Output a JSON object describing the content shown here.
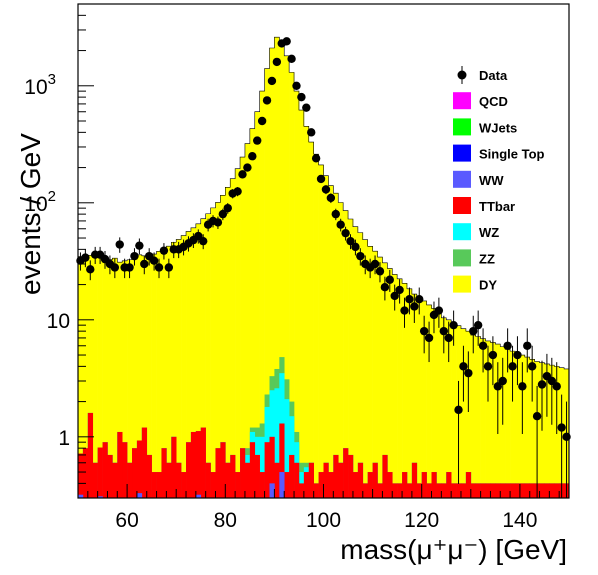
{
  "chart_data": {
    "type": "histogram",
    "stacked": true,
    "xlabel": "mass(μ⁺μ⁻) [GeV]",
    "ylabel": "events / GeV",
    "xlim": [
      50,
      150
    ],
    "ylim": [
      0.3,
      5000
    ],
    "y_scale": "log",
    "bin_width": 1,
    "grid": false,
    "legend_position": "top-right",
    "x_ticks": [
      {
        "value": 60,
        "label": "60"
      },
      {
        "value": 80,
        "label": "80"
      },
      {
        "value": 100,
        "label": "100"
      },
      {
        "value": 120,
        "label": "120"
      },
      {
        "value": 140,
        "label": "140"
      }
    ],
    "y_ticks": [
      {
        "value": 1,
        "label": "1",
        "sup": ""
      },
      {
        "value": 10,
        "label": "10",
        "sup": ""
      },
      {
        "value": 100,
        "label": "10",
        "sup": "2"
      },
      {
        "value": 1000,
        "label": "10",
        "sup": "3"
      }
    ],
    "legend": [
      {
        "name": "Data",
        "marker": "point",
        "color": "#000000"
      },
      {
        "name": "QCD",
        "marker": "box",
        "color": "#ff00ff"
      },
      {
        "name": "WJets",
        "marker": "box",
        "color": "#00ff00"
      },
      {
        "name": "Single Top",
        "marker": "box",
        "color": "#0000ff"
      },
      {
        "name": "WW",
        "marker": "box",
        "color": "#5a5aff"
      },
      {
        "name": "TTbar",
        "marker": "box",
        "color": "#ff0000"
      },
      {
        "name": "WZ",
        "marker": "box",
        "color": "#00ffff"
      },
      {
        "name": "ZZ",
        "marker": "box",
        "color": "#58c95a"
      },
      {
        "name": "DY",
        "marker": "box",
        "color": "#ffff00"
      }
    ],
    "bins_x": [
      50,
      51,
      52,
      53,
      54,
      55,
      56,
      57,
      58,
      59,
      60,
      61,
      62,
      63,
      64,
      65,
      66,
      67,
      68,
      69,
      70,
      71,
      72,
      73,
      74,
      75,
      76,
      77,
      78,
      79,
      80,
      81,
      82,
      83,
      84,
      85,
      86,
      87,
      88,
      89,
      90,
      91,
      92,
      93,
      94,
      95,
      96,
      97,
      98,
      99,
      100,
      101,
      102,
      103,
      104,
      105,
      106,
      107,
      108,
      109,
      110,
      111,
      112,
      113,
      114,
      115,
      116,
      117,
      118,
      119,
      120,
      121,
      122,
      123,
      124,
      125,
      126,
      127,
      128,
      129,
      130,
      131,
      132,
      133,
      134,
      135,
      136,
      137,
      138,
      139,
      140,
      141,
      142,
      143,
      144,
      145,
      146,
      147,
      148,
      149
    ],
    "series": [
      {
        "name": "DY",
        "color": "#ffff00",
        "values": [
          34,
          32,
          34,
          35,
          35,
          33,
          32,
          33,
          30,
          31,
          32,
          34,
          35,
          34,
          35,
          36,
          38,
          40,
          42,
          45,
          48,
          52,
          56,
          60,
          65,
          72,
          80,
          90,
          100,
          115,
          135,
          160,
          195,
          245,
          320,
          430,
          600,
          900,
          1400,
          2100,
          2600,
          2300,
          1800,
          1300,
          900,
          620,
          450,
          330,
          260,
          210,
          170,
          140,
          120,
          100,
          85,
          72,
          62,
          55,
          48,
          42,
          38,
          34,
          30,
          27,
          24,
          22,
          20,
          18,
          16,
          15,
          14,
          13,
          12,
          11,
          10,
          9.5,
          9,
          8.5,
          8,
          7.5,
          7,
          6.8,
          6.5,
          6.2,
          6,
          5.8,
          5.5,
          5.2,
          5,
          4.8,
          4.6,
          4.4,
          4.2,
          4,
          3.9,
          3.8,
          3.7,
          3.6,
          3.5,
          3.4
        ]
      },
      {
        "name": "ZZ",
        "color": "#58c95a",
        "values": [
          0,
          0,
          0,
          0,
          0,
          0,
          0,
          0,
          0,
          0,
          0,
          0,
          0,
          0,
          0,
          0,
          0,
          0,
          0,
          0,
          0,
          0,
          0,
          0,
          0,
          0,
          0,
          0,
          0,
          0,
          0,
          0,
          0,
          0,
          0.1,
          0.1,
          0.2,
          0.3,
          0.5,
          0.8,
          1.2,
          1.3,
          1.0,
          0.5,
          0.2,
          0.1,
          0.05,
          0,
          0,
          0,
          0,
          0,
          0,
          0,
          0,
          0,
          0,
          0,
          0,
          0,
          0,
          0,
          0,
          0,
          0,
          0,
          0,
          0,
          0,
          0,
          0,
          0,
          0,
          0,
          0,
          0,
          0,
          0,
          0,
          0,
          0,
          0,
          0,
          0,
          0,
          0,
          0,
          0,
          0,
          0,
          0,
          0,
          0,
          0,
          0,
          0,
          0,
          0,
          0,
          0
        ]
      },
      {
        "name": "WZ",
        "color": "#00ffff",
        "values": [
          0,
          0,
          0,
          0,
          0,
          0,
          0,
          0,
          0,
          0,
          0,
          0,
          0,
          0,
          0,
          0,
          0,
          0,
          0,
          0,
          0,
          0,
          0,
          0,
          0,
          0,
          0,
          0,
          0,
          0,
          0,
          0,
          0,
          0,
          0.1,
          0.2,
          0.3,
          0.5,
          0.9,
          1.5,
          2.0,
          2.2,
          1.6,
          0.8,
          0.3,
          0.1,
          0.05,
          0,
          0,
          0,
          0,
          0,
          0,
          0,
          0,
          0,
          0,
          0,
          0,
          0,
          0,
          0,
          0,
          0,
          0,
          0,
          0,
          0,
          0,
          0,
          0,
          0,
          0,
          0,
          0,
          0,
          0,
          0,
          0,
          0,
          0,
          0,
          0,
          0,
          0,
          0,
          0,
          0,
          0,
          0,
          0,
          0,
          0,
          0,
          0,
          0,
          0,
          0,
          0,
          0
        ]
      },
      {
        "name": "TTbar",
        "color": "#ff0000",
        "values": [
          0.4,
          0.8,
          1.6,
          0.6,
          0.5,
          0.9,
          0.7,
          0.6,
          1.1,
          0.9,
          0.6,
          0.8,
          0.6,
          1.2,
          0.7,
          0.5,
          0.5,
          0.8,
          0.6,
          1.0,
          0.6,
          0.5,
          0.9,
          1.1,
          0.8,
          1.2,
          0.6,
          0.5,
          0.8,
          0.9,
          0.6,
          0.7,
          0.5,
          0.8,
          0.6,
          0.9,
          0.7,
          0.5,
          0.9,
          0.6,
          0.6,
          0.8,
          0.5,
          0.7,
          0.6,
          0.4,
          0.5,
          0.6,
          0.4,
          0.5,
          0.6,
          0.5,
          0.7,
          0.6,
          0.8,
          0.7,
          0.5,
          0.6,
          0.4,
          0.5,
          0.6,
          0.4,
          0.7,
          0.5,
          0.4,
          0.4,
          0.5,
          0.4,
          0.6,
          0.4,
          0.5,
          0.4,
          0.5,
          0.4,
          0.4,
          0.5,
          0.4,
          0.4,
          0.4,
          0.5,
          0.4,
          0.4,
          0.4,
          0.4,
          0.4,
          0.4,
          0.4,
          0.4,
          0.4,
          0.4,
          0.4,
          0.4,
          0.4,
          0.4,
          0.4,
          0.4,
          0.4,
          0.4,
          0.4,
          0.4
        ]
      },
      {
        "name": "WW",
        "color": "#5a5aff",
        "values": [
          0.32,
          0,
          0,
          0,
          0.31,
          0,
          0,
          0,
          0,
          0,
          0,
          0,
          0.33,
          0,
          0,
          0,
          0,
          0,
          0,
          0,
          0,
          0,
          0,
          0,
          0.32,
          0,
          0,
          0,
          0,
          0,
          0,
          0,
          0,
          0,
          0,
          0,
          0,
          0,
          0,
          0.4,
          0,
          0.5,
          0,
          0,
          0,
          0,
          0,
          0,
          0,
          0,
          0,
          0,
          0,
          0,
          0,
          0,
          0,
          0,
          0,
          0,
          0,
          0,
          0,
          0,
          0,
          0,
          0,
          0,
          0,
          0,
          0,
          0,
          0,
          0,
          0,
          0,
          0,
          0,
          0,
          0,
          0,
          0,
          0,
          0,
          0,
          0,
          0,
          0,
          0,
          0,
          0,
          0,
          0,
          0,
          0,
          0,
          0,
          0,
          0,
          0
        ]
      }
    ],
    "data_points": {
      "name": "Data",
      "x": [
        50.5,
        51.5,
        52.5,
        53.5,
        54.5,
        55.5,
        56.5,
        57.5,
        58.5,
        59.5,
        60.5,
        61.5,
        62.5,
        63.5,
        64.5,
        65.5,
        66.5,
        67.5,
        68.5,
        69.5,
        70.5,
        71.5,
        72.5,
        73.5,
        74.5,
        75.5,
        76.5,
        77.5,
        78.5,
        79.5,
        80.5,
        81.5,
        82.5,
        83.5,
        84.5,
        85.5,
        86.5,
        87.5,
        88.5,
        89.5,
        90.5,
        91.5,
        92.5,
        93.5,
        94.5,
        95.5,
        96.5,
        97.5,
        98.5,
        99.5,
        100.5,
        101.5,
        102.5,
        103.5,
        104.5,
        105.5,
        106.5,
        107.5,
        108.5,
        109.5,
        110.5,
        111.5,
        112.5,
        113.5,
        114.5,
        115.5,
        116.5,
        117.5,
        118.5,
        119.5,
        120.5,
        121.5,
        122.5,
        123.5,
        124.5,
        125.5,
        126.5,
        127.5,
        128.5,
        129.5,
        130.5,
        131.5,
        132.5,
        133.5,
        134.5,
        135.5,
        136.5,
        137.5,
        138.5,
        139.5,
        140.5,
        141.5,
        142.5,
        143.5,
        144.5,
        145.5,
        146.5,
        147.5,
        148.5,
        149.5
      ],
      "y": [
        32,
        34,
        27,
        36,
        36,
        33,
        30,
        28,
        44,
        28,
        28,
        35,
        43,
        30,
        35,
        32,
        28,
        39,
        28,
        40,
        40,
        42,
        45,
        48,
        52,
        47,
        65,
        70,
        68,
        80,
        90,
        120,
        125,
        175,
        200,
        250,
        340,
        500,
        750,
        1100,
        1600,
        2300,
        2400,
        1700,
        1000,
        800,
        650,
        400,
        240,
        160,
        130,
        110,
        80,
        65,
        55,
        47,
        42,
        35,
        30,
        28,
        30,
        26,
        19,
        22,
        16,
        18,
        12,
        15,
        13,
        15,
        8,
        7,
        11,
        12,
        8,
        7,
        9,
        1.7,
        4,
        3.5,
        8,
        9,
        6,
        4,
        5,
        2.7,
        3,
        6,
        4,
        5,
        2.7,
        6,
        4,
        1.5,
        2.8,
        3.3,
        3,
        2.7,
        1.2,
        1
      ]
    }
  }
}
